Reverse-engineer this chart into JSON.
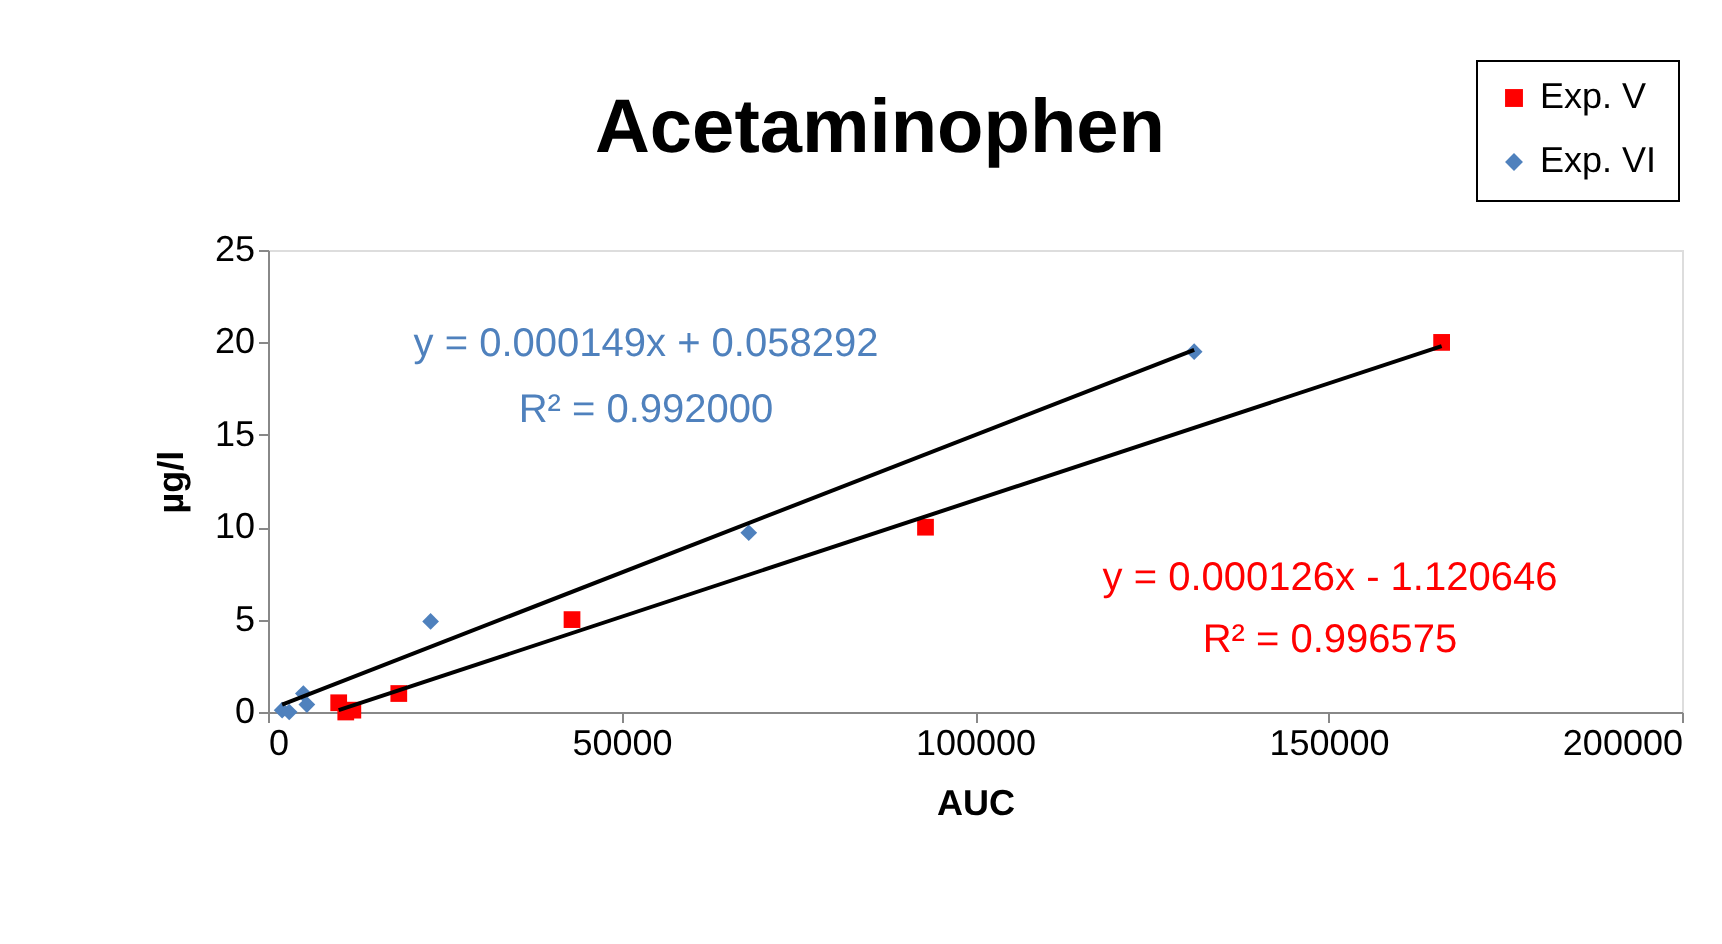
{
  "chart_data": {
    "type": "scatter",
    "title": "Acetaminophen",
    "xlabel": "AUC",
    "ylabel": "µg/l",
    "series": [
      {
        "name": "Exp. V",
        "color": "#ff0000",
        "marker": "square",
        "x": [
          166000,
          93000,
          43000,
          18500,
          10000,
          11000,
          12000
        ],
        "values": [
          20,
          10,
          5,
          1,
          0.5,
          0,
          0.1
        ]
      },
      {
        "name": "Exp. VI",
        "color": "#4f81bd",
        "marker": "diamond",
        "x": [
          131000,
          68000,
          23000,
          5000,
          5500,
          2000,
          3000
        ],
        "values": [
          19.5,
          9.7,
          4.9,
          1,
          0.4,
          0.1,
          0
        ]
      },
      {
        "type": "line",
        "color": "#000000",
        "x": [
          10000,
          166000
        ],
        "values": [
          0.1,
          19.8
        ]
      },
      {
        "type": "line",
        "color": "#000000",
        "x": [
          2000,
          131000
        ],
        "values": [
          0.4,
          19.6
        ]
      }
    ],
    "annotations": [
      "y = 0.000126x - 1.120646",
      "R² = 0.996575",
      "y = 0.000149x + 0.058292",
      "R² = 0.992000"
    ],
    "xlim": [
      0,
      200000
    ],
    "xticks": [
      0,
      50000,
      100000,
      150000,
      200000
    ],
    "ylim": [
      0,
      25
    ],
    "yticks": [
      0,
      5,
      10,
      15,
      20,
      25
    ],
    "grid": false,
    "legend": "top right"
  }
}
